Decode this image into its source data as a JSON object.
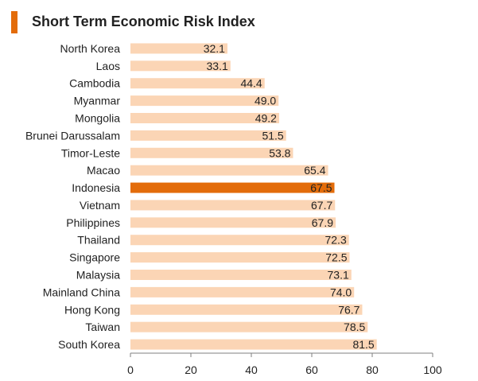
{
  "colors": {
    "bar": "#fbd5b5",
    "highlight": "#e36c0a",
    "accent": "#e36c0a",
    "axis": "#7f7f7f",
    "text": "#222222"
  },
  "chart_data": {
    "type": "bar",
    "orientation": "horizontal",
    "title": "Short Term Economic Risk Index",
    "xlabel": "",
    "ylabel": "",
    "xlim": [
      0,
      100
    ],
    "xticks": [
      0,
      20,
      40,
      60,
      80,
      100
    ],
    "grid": false,
    "highlighted_category": "Indonesia",
    "categories": [
      "North Korea",
      "Laos",
      "Cambodia",
      "Myanmar",
      "Mongolia",
      "Brunei Darussalam",
      "Timor-Leste",
      "Macao",
      "Indonesia",
      "Vietnam",
      "Philippines",
      "Thailand",
      "Singapore",
      "Malaysia",
      "Mainland China",
      "Hong Kong",
      "Taiwan",
      "South Korea"
    ],
    "values": [
      32.1,
      33.1,
      44.4,
      49.0,
      49.2,
      51.5,
      53.8,
      65.4,
      67.5,
      67.7,
      67.9,
      72.3,
      72.5,
      73.1,
      74.0,
      76.7,
      78.5,
      81.5
    ],
    "value_labels": [
      "32.1",
      "33.1",
      "44.4",
      "49.0",
      "49.2",
      "51.5",
      "53.8",
      "65.4",
      "67.5",
      "67.7",
      "67.9",
      "72.3",
      "72.5",
      "73.1",
      "74.0",
      "76.7",
      "78.5",
      "81.5"
    ]
  }
}
